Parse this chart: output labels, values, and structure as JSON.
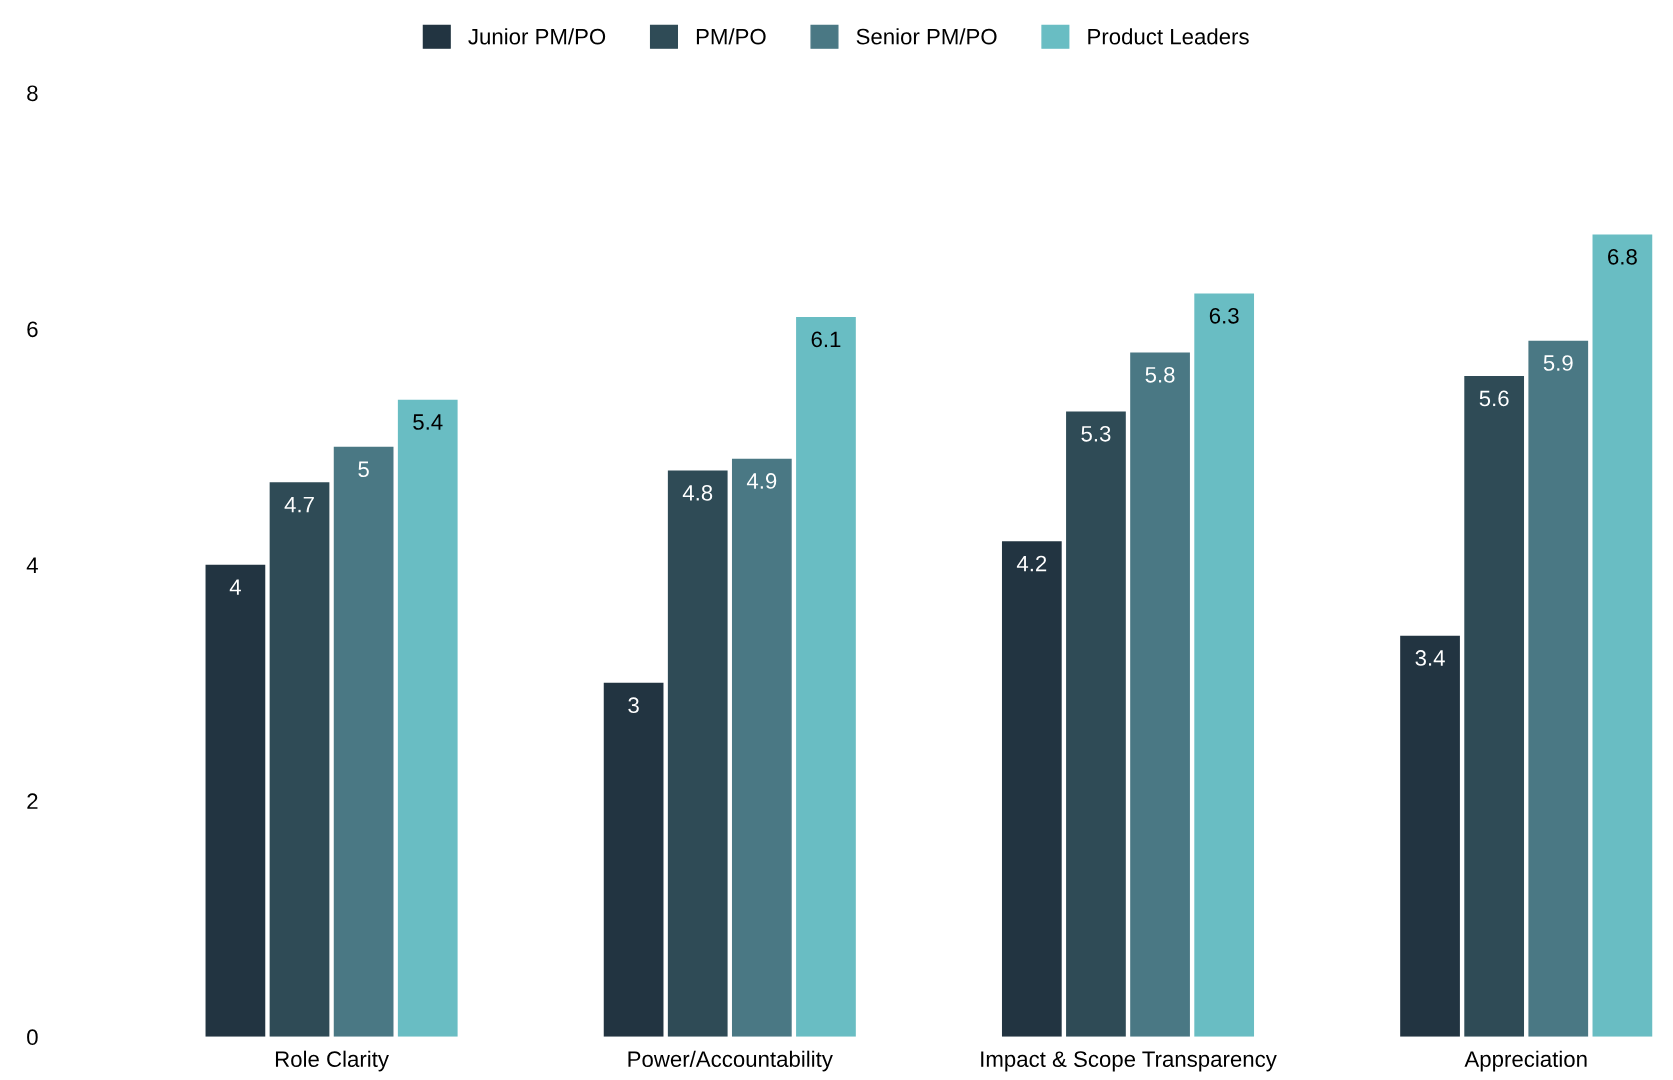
{
  "chart_data": {
    "type": "bar",
    "categories": [
      "Role Clarity",
      "Power/Accountability",
      "Impact & Scope Transparency",
      "Appreciation"
    ],
    "series": [
      {
        "name": "Junior PM/PO",
        "color": "#223441",
        "values": [
          4,
          3,
          4.2,
          3.4
        ]
      },
      {
        "name": "PM/PO",
        "color": "#2f4b56",
        "values": [
          4.7,
          4.8,
          5.3,
          5.6
        ]
      },
      {
        "name": "Senior PM/PO",
        "color": "#4a7884",
        "values": [
          5,
          4.9,
          5.8,
          5.9
        ]
      },
      {
        "name": "Product Leaders",
        "color": "#69bdc3",
        "values": [
          5.4,
          6.1,
          6.3,
          6.8
        ]
      }
    ],
    "ylim": [
      0,
      8
    ],
    "yticks": [
      0,
      2,
      4,
      6,
      8
    ],
    "grid": false,
    "legend": "top",
    "data_labels": true
  }
}
